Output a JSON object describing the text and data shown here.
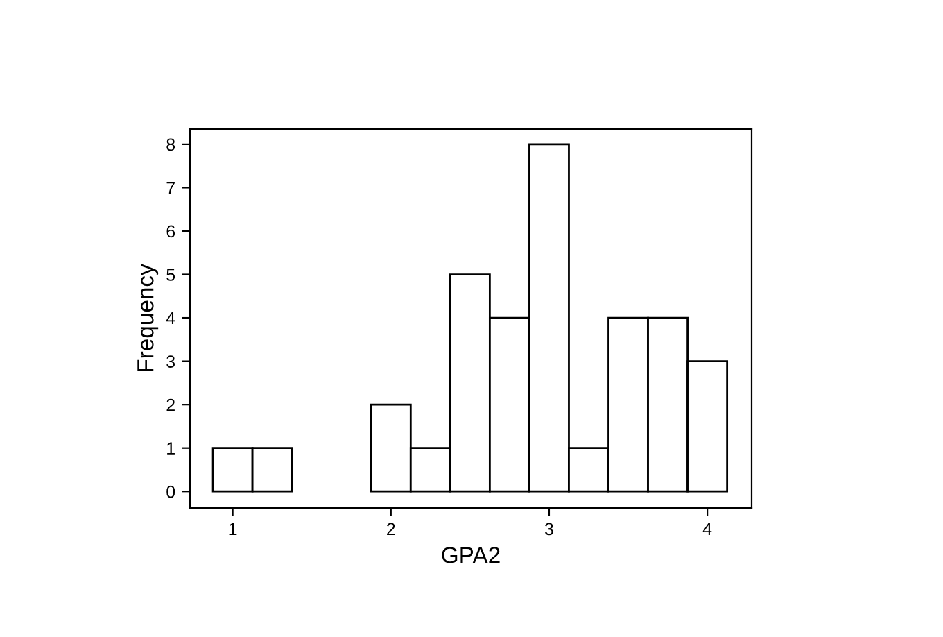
{
  "chart_data": {
    "type": "histogram",
    "xlabel": "GPA2",
    "ylabel": "Frequency",
    "bins": [
      0.875,
      1.125,
      1.375,
      1.625,
      1.875,
      2.125,
      2.375,
      2.625,
      2.875,
      3.125,
      3.375,
      3.625,
      3.875,
      4.125
    ],
    "values": [
      1,
      1,
      0,
      0,
      2,
      1,
      5,
      4,
      8,
      1,
      4,
      4,
      3
    ],
    "color": "#ffffff",
    "xlim": [
      0.73,
      4.28
    ],
    "xticks": [
      1,
      2,
      3,
      4
    ],
    "ylim": [
      -0.38,
      8.35
    ],
    "yticks": [
      0,
      1,
      2,
      3,
      4,
      5,
      6,
      7,
      8
    ],
    "grid": false
  }
}
